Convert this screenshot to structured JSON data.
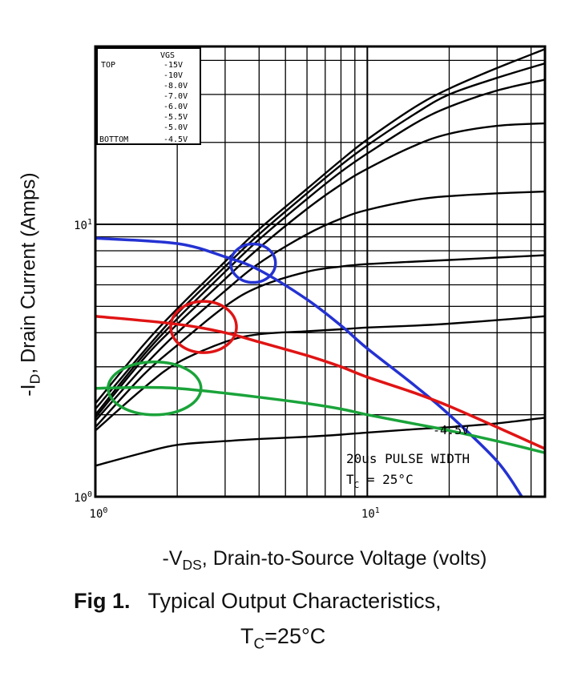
{
  "chart_data": {
    "type": "line",
    "scale": "log-log",
    "xlim": [
      1,
      45
    ],
    "ylim": [
      1,
      45
    ],
    "x_ticks": [
      {
        "value": 1,
        "base": "10",
        "exp": "0"
      },
      {
        "value": 10,
        "base": "10",
        "exp": "1"
      }
    ],
    "y_ticks": [
      {
        "value": 1,
        "base": "10",
        "exp": "0"
      },
      {
        "value": 10,
        "base": "10",
        "exp": "1"
      }
    ],
    "xlabel": {
      "prefix": "-V",
      "sub": "DS",
      "rest": ", Drain-to-Source Voltage (volts)"
    },
    "ylabel": {
      "prefix": "-I",
      "sub": "D",
      "rest": ", Drain Current (Amps)"
    },
    "grid": true,
    "legend": {
      "placement": "top-left",
      "header": "VGS",
      "top_label": "TOP",
      "bottom_label": "BOTTOM",
      "entries": [
        "-15V",
        "-10V",
        "-8.0V",
        "-7.0V",
        "-6.0V",
        "-5.5V",
        "-5.0V",
        "-4.5V"
      ]
    },
    "annotations": {
      "curve_label": "-4.5V",
      "pulse": "20us PULSE WIDTH",
      "tc_prefix": "T",
      "tc_sub": "C",
      "tc_rest": " = 25°C"
    },
    "series": [
      {
        "label": "-15V",
        "x": [
          1,
          1.5,
          2,
          3,
          4,
          6,
          8,
          10,
          15,
          20,
          30,
          45
        ],
        "y": [
          2.2,
          3.6,
          4.9,
          7.3,
          9.6,
          13.5,
          17.2,
          20.5,
          27.0,
          31.5,
          37.5,
          44.0
        ]
      },
      {
        "label": "-10V",
        "x": [
          1,
          1.5,
          2,
          3,
          4,
          6,
          8,
          10,
          15,
          20,
          30,
          45
        ],
        "y": [
          2.1,
          3.4,
          4.7,
          7.0,
          9.2,
          13.0,
          16.5,
          19.5,
          25.5,
          30.0,
          34.5,
          39.0
        ]
      },
      {
        "label": "-8.0V",
        "x": [
          1,
          1.5,
          2,
          3,
          4,
          6,
          8,
          10,
          15,
          20,
          30,
          45
        ],
        "y": [
          2.0,
          3.3,
          4.5,
          6.7,
          8.8,
          12.4,
          15.6,
          18.2,
          23.5,
          27.0,
          31.0,
          34.0
        ]
      },
      {
        "label": "-7.0V",
        "x": [
          1,
          1.5,
          2,
          3,
          4,
          6,
          8,
          10,
          15,
          20,
          30,
          45
        ],
        "y": [
          1.95,
          3.2,
          4.3,
          6.3,
          8.2,
          11.4,
          14.0,
          16.0,
          19.5,
          21.5,
          23.0,
          23.5
        ]
      },
      {
        "label": "-6.0V",
        "x": [
          1,
          1.5,
          2,
          3,
          4,
          6,
          8,
          10,
          15,
          20,
          30,
          45
        ],
        "y": [
          1.9,
          3.0,
          4.0,
          5.7,
          7.2,
          9.2,
          10.5,
          11.3,
          12.3,
          12.7,
          13.0,
          13.2
        ]
      },
      {
        "label": "-5.5V",
        "x": [
          1,
          1.5,
          2,
          3,
          4,
          6,
          8,
          10,
          15,
          20,
          30,
          45
        ],
        "y": [
          1.8,
          2.8,
          3.6,
          5.0,
          5.9,
          6.7,
          7.0,
          7.15,
          7.3,
          7.4,
          7.55,
          7.7
        ]
      },
      {
        "label": "-5.0V",
        "x": [
          1,
          1.5,
          2,
          3,
          4,
          6,
          8,
          10,
          15,
          20,
          30,
          45
        ],
        "y": [
          1.75,
          2.5,
          3.1,
          3.7,
          3.95,
          4.05,
          4.12,
          4.18,
          4.25,
          4.32,
          4.45,
          4.6
        ]
      },
      {
        "label": "-4.5V",
        "x": [
          1,
          1.5,
          2,
          3,
          4,
          6,
          8,
          10,
          15,
          20,
          30,
          45
        ],
        "y": [
          1.3,
          1.45,
          1.55,
          1.6,
          1.63,
          1.66,
          1.69,
          1.72,
          1.77,
          1.8,
          1.86,
          1.95
        ]
      },
      {
        "label": "",
        "color": "#2432d2",
        "x": [
          1,
          2,
          3,
          4,
          6,
          8,
          10,
          15,
          20,
          30,
          37
        ],
        "y": [
          8.9,
          8.5,
          7.6,
          6.8,
          5.3,
          4.25,
          3.5,
          2.55,
          2.0,
          1.35,
          1.0
        ]
      },
      {
        "label": "",
        "color": "#e01414",
        "x": [
          1,
          2,
          3,
          4,
          6,
          8,
          10,
          15,
          20,
          30,
          45
        ],
        "y": [
          4.6,
          4.3,
          4.0,
          3.7,
          3.3,
          3.0,
          2.75,
          2.4,
          2.15,
          1.8,
          1.5
        ]
      },
      {
        "label": "",
        "color": "#1aa33a",
        "x": [
          1,
          1.5,
          2,
          3,
          4,
          6,
          8,
          10,
          15,
          20,
          30,
          45
        ],
        "y": [
          2.5,
          2.52,
          2.5,
          2.4,
          2.32,
          2.2,
          2.1,
          2.0,
          1.85,
          1.75,
          1.6,
          1.45
        ]
      }
    ],
    "highlights": [
      {
        "color": "#2432d2",
        "x": 3.8,
        "y": 7.2
      },
      {
        "color": "#e01414",
        "x": 2.5,
        "y": 4.2
      },
      {
        "color": "#1aa33a",
        "x": 1.65,
        "y": 2.5
      }
    ]
  },
  "caption": {
    "fig": "Fig 1.",
    "line1": "Typical Output Characteristics,",
    "line2_prefix": "T",
    "line2_sub": "C",
    "line2_rest": "=25°C"
  }
}
